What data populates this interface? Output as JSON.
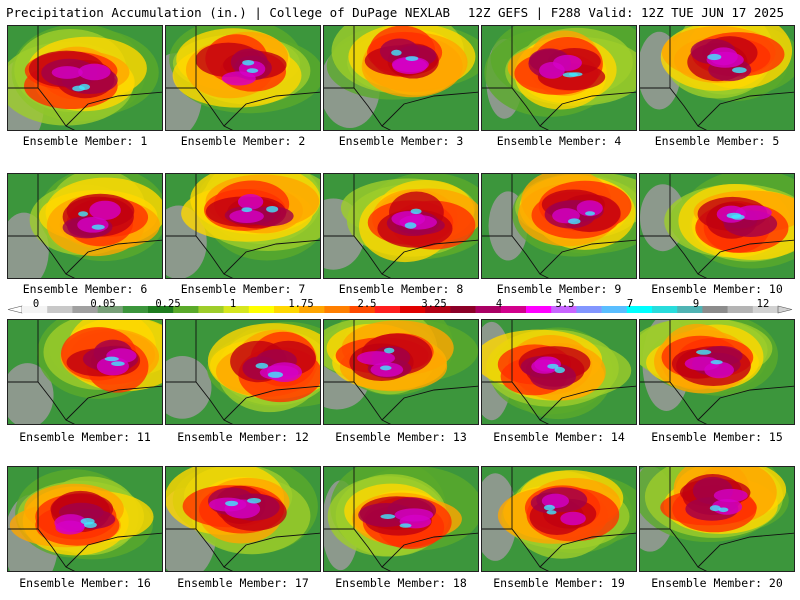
{
  "header": {
    "title_left": "Precipitation Accumulation (in.) | College of DuPage NEXLAB",
    "title_right": "12Z GEFS | F288 Valid: 12Z TUE JUN 17 2025"
  },
  "members": [
    "Ensemble Member: 1",
    "Ensemble Member: 2",
    "Ensemble Member: 3",
    "Ensemble Member: 4",
    "Ensemble Member: 5",
    "Ensemble Member: 6",
    "Ensemble Member: 7",
    "Ensemble Member: 8",
    "Ensemble Member: 9",
    "Ensemble Member: 10",
    "Ensemble Member: 11",
    "Ensemble Member: 12",
    "Ensemble Member: 13",
    "Ensemble Member: 14",
    "Ensemble Member: 15",
    "Ensemble Member: 16",
    "Ensemble Member: 17",
    "Ensemble Member: 18",
    "Ensemble Member: 19",
    "Ensemble Member: 20"
  ],
  "colorbar": {
    "labels": [
      "0",
      "0.05",
      "0.25",
      "1",
      "1.75",
      "2.5",
      "3.25",
      "4",
      "5.5",
      "7",
      "9",
      "12"
    ],
    "colors": [
      "#f4f4f4",
      "#c8c8c8",
      "#a0a0a0",
      "#78a078",
      "#3c963c",
      "#1e7d1e",
      "#5aaa2a",
      "#9ecd2a",
      "#d6e61e",
      "#ffff00",
      "#ffd700",
      "#ffa500",
      "#ff7f00",
      "#ff4a00",
      "#ff1e1e",
      "#e00000",
      "#b40014",
      "#8c0028",
      "#aa0064",
      "#d2008c",
      "#ff00ff",
      "#c864ff",
      "#8296ff",
      "#5abeff",
      "#00ffff",
      "#28dcdc",
      "#50b4b4",
      "#8c8c8c",
      "#b4b4b4",
      "#d2d2d2"
    ]
  }
}
